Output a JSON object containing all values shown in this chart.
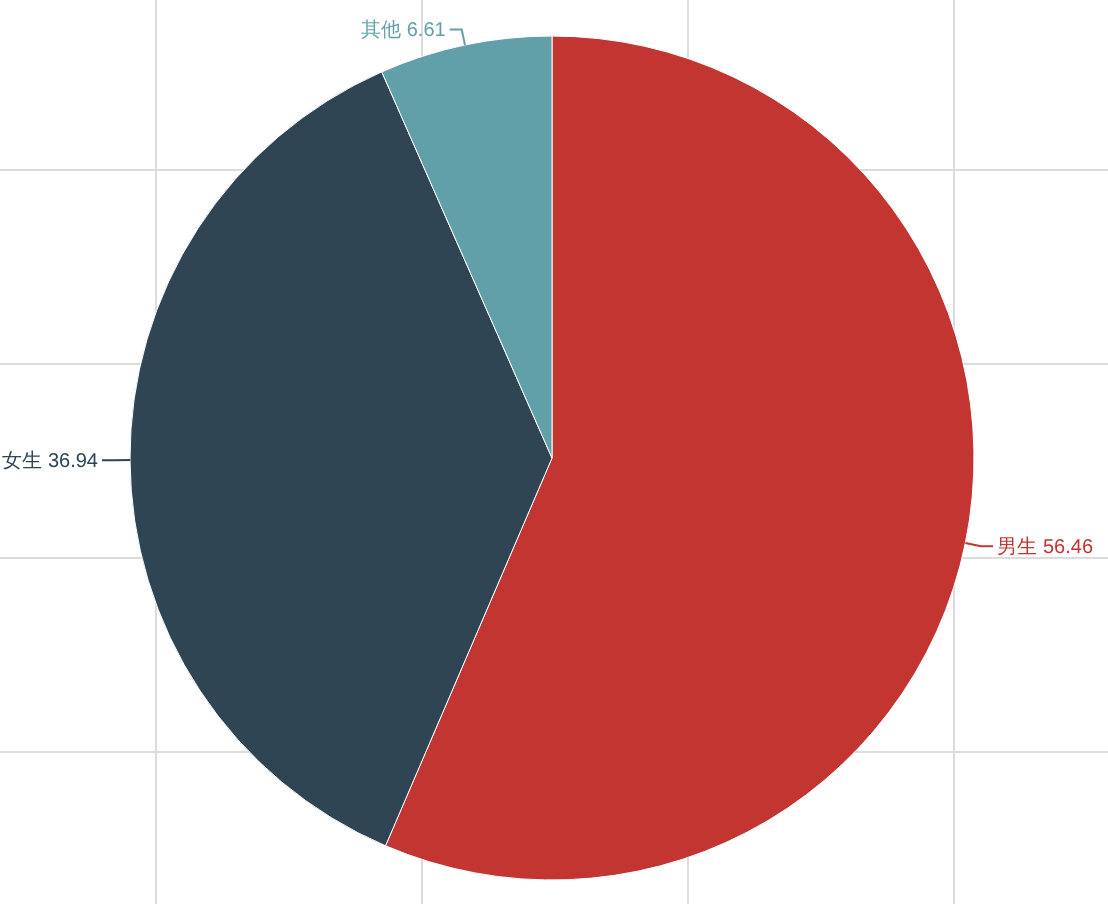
{
  "chart_data": {
    "type": "pie",
    "categories": [
      "男生",
      "女生",
      "其他"
    ],
    "values": [
      56.46,
      36.94,
      6.61
    ],
    "colors": [
      "#c23531",
      "#2f4554",
      "#61a0a8"
    ],
    "data_labels": true,
    "grid": true
  }
}
